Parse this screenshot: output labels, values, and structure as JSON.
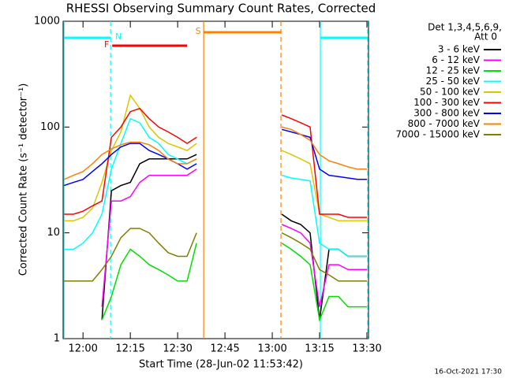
{
  "chart_data": {
    "type": "line",
    "log": true,
    "title": "RHESSI Observing Summary Count Rates, Corrected",
    "x_label": "Start Time (28-Jun-02 11:53:42)",
    "y_label": "Corrected Count Rate (s⁻¹ detector⁻¹)",
    "legend_header": [
      "Det 1,3,4,5,6,9,",
      "Att 0"
    ],
    "timestamp": "16-Oct-2021 17:30",
    "xlim": [
      "11:53:42",
      "13:30:30"
    ],
    "xticks": [
      "12:00",
      "12:15",
      "12:30",
      "12:45",
      "13:00",
      "13:15",
      "13:30"
    ],
    "ylim": [
      1,
      1000
    ],
    "yticks": [
      1,
      10,
      100,
      1000
    ],
    "x": [
      "11:54",
      "11:57",
      "12:00",
      "12:03",
      "12:06",
      "12:09",
      "12:12",
      "12:15",
      "12:18",
      "12:21",
      "12:24",
      "12:27",
      "12:30",
      "12:33",
      "12:36",
      "12:39",
      "12:42",
      "12:45",
      "12:48",
      "12:51",
      "12:54",
      "12:57",
      "13:00",
      "13:03",
      "13:06",
      "13:09",
      "13:12",
      "13:15",
      "13:18",
      "13:21",
      "13:24",
      "13:27",
      "13:30"
    ],
    "series": [
      {
        "name": "3 - 6 keV",
        "color": "#000000",
        "values": [
          null,
          null,
          null,
          null,
          1.5,
          25,
          28,
          30,
          45,
          50,
          50,
          50,
          50,
          50,
          55,
          null,
          null,
          null,
          null,
          null,
          null,
          null,
          null,
          15,
          13,
          12,
          10,
          1.5,
          7,
          7,
          6,
          6,
          6
        ]
      },
      {
        "name": "6 - 12 keV",
        "color": "#ff00ff",
        "values": [
          null,
          null,
          null,
          null,
          2,
          20,
          20,
          22,
          30,
          35,
          35,
          35,
          35,
          35,
          40,
          null,
          null,
          null,
          null,
          null,
          null,
          null,
          null,
          12,
          11,
          10,
          8,
          2,
          5,
          5,
          4.5,
          4.5,
          4.5
        ]
      },
      {
        "name": "12 - 25 keV",
        "color": "#00e000",
        "values": [
          null,
          null,
          null,
          null,
          1.5,
          2.5,
          5,
          7,
          6,
          5,
          4.5,
          4,
          3.5,
          3.5,
          8,
          null,
          null,
          null,
          null,
          null,
          null,
          null,
          null,
          8,
          7,
          6,
          5,
          1.5,
          2.5,
          2.5,
          2,
          2,
          2
        ]
      },
      {
        "name": "25 - 50 keV",
        "color": "#00ffff",
        "values": [
          7,
          7,
          8,
          10,
          15,
          40,
          70,
          120,
          110,
          80,
          70,
          55,
          50,
          45,
          50,
          null,
          null,
          null,
          null,
          null,
          null,
          null,
          null,
          35,
          33,
          32,
          31,
          8,
          7,
          7,
          6,
          6,
          6
        ]
      },
      {
        "name": "50 - 100 keV",
        "color": "#d8c800",
        "values": [
          13,
          13,
          14,
          17,
          30,
          60,
          90,
          200,
          150,
          100,
          80,
          70,
          65,
          60,
          70,
          null,
          null,
          null,
          null,
          null,
          null,
          null,
          null,
          60,
          55,
          50,
          45,
          15,
          14,
          13,
          13,
          13,
          13
        ]
      },
      {
        "name": "100 - 300 keV",
        "color": "#ff0000",
        "values": [
          15,
          15,
          16,
          18,
          20,
          80,
          100,
          140,
          150,
          120,
          100,
          90,
          80,
          70,
          80,
          null,
          null,
          null,
          null,
          null,
          null,
          null,
          null,
          130,
          120,
          110,
          100,
          15,
          15,
          15,
          14,
          14,
          14
        ]
      },
      {
        "name": "300 - 800 keV",
        "color": "#0000ff",
        "values": [
          28,
          30,
          32,
          38,
          45,
          55,
          65,
          70,
          70,
          60,
          55,
          50,
          45,
          40,
          45,
          null,
          null,
          null,
          null,
          null,
          null,
          null,
          null,
          95,
          90,
          85,
          80,
          40,
          35,
          34,
          33,
          32,
          32
        ]
      },
      {
        "name": "800 - 7000 keV",
        "color": "#ff8000",
        "values": [
          32,
          35,
          38,
          45,
          55,
          62,
          68,
          72,
          72,
          68,
          60,
          50,
          45,
          45,
          50,
          null,
          null,
          null,
          null,
          null,
          null,
          null,
          null,
          100,
          95,
          85,
          75,
          55,
          48,
          45,
          42,
          40,
          40
        ]
      },
      {
        "name": "7000 - 15000 keV",
        "color": "#808000",
        "values": [
          3.5,
          3.5,
          3.5,
          3.5,
          4.5,
          6,
          9,
          11,
          11,
          10,
          8,
          6.5,
          6,
          6,
          10,
          null,
          null,
          null,
          null,
          null,
          null,
          null,
          null,
          10,
          9,
          8,
          7,
          4.5,
          4,
          3.5,
          3.5,
          3.5,
          3.5
        ]
      }
    ],
    "flags": [
      {
        "label": "N",
        "color": "#00ffff",
        "start": "11:54",
        "end": "12:08:45"
      },
      {
        "label": "F",
        "color": "#ff0000",
        "start": "12:09:15",
        "end": "12:33:00"
      },
      {
        "label": "S",
        "color": "#ff8000",
        "start": "12:38:15",
        "end": "13:02:45"
      },
      {
        "color": "#00ffff",
        "start": "13:15:15",
        "end": "13:30:15"
      }
    ],
    "events": [
      {
        "time": "11:54",
        "color": "#00ffff",
        "dashed": false
      },
      {
        "time": "12:08:45",
        "color": "#00ffff",
        "dashed": true
      },
      {
        "time": "12:38:15",
        "color": "#ff8000",
        "dashed": false
      },
      {
        "time": "13:02:45",
        "color": "#ff8000",
        "dashed": true
      },
      {
        "time": "13:15:15",
        "color": "#00ffff",
        "dashed": false
      },
      {
        "time": "13:30:15",
        "color": "#00ffff",
        "dashed": true
      }
    ]
  }
}
